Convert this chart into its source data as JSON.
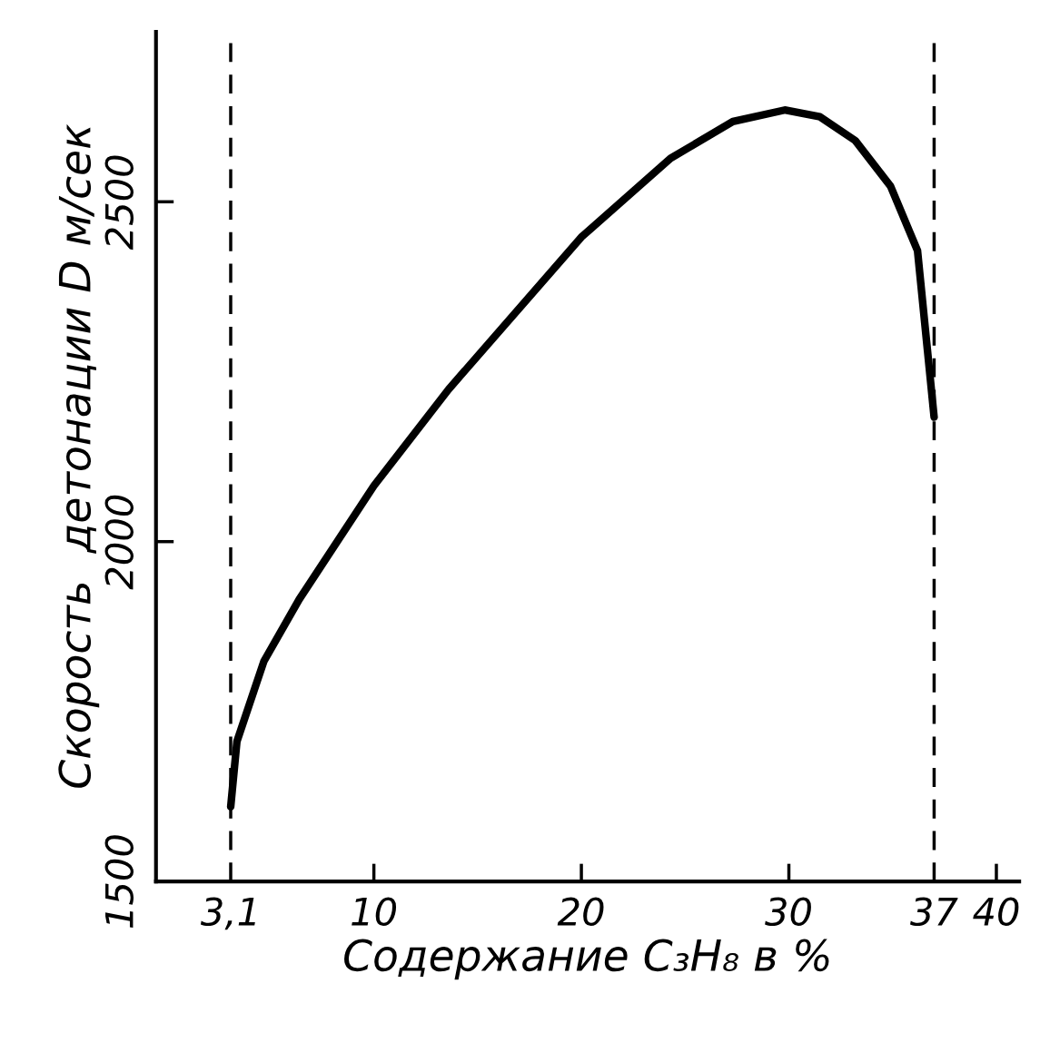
{
  "chart_data": {
    "type": "line",
    "xlabel": "Содержание C₃H₈ в %",
    "ylabel": "Скорость  детонации D м/сек",
    "x": [
      3.1,
      3.4,
      4.7,
      6.4,
      10,
      13.6,
      20,
      24.3,
      27.3,
      29.8,
      31.5,
      33.2,
      34.9,
      36.2,
      37
    ],
    "series": [
      {
        "color": "#000000",
        "values": [
          1610,
          1706,
          1824,
          1915,
          2082,
          2224,
          2448,
          2564,
          2618,
          2635,
          2625,
          2590,
          2523,
          2428,
          2183
        ]
      }
    ],
    "xlim": [
      -0.5,
      41.1
    ],
    "ylim": [
      1500,
      2750
    ],
    "xticks": [
      {
        "value": 3.1,
        "label": "3,1"
      },
      10,
      20,
      30,
      37,
      40
    ],
    "yticks": [
      1500,
      2000,
      2500
    ],
    "ref_lines": [
      {
        "axis": "x",
        "value": 3.1,
        "color": "#000000",
        "line_style": "dashed"
      },
      {
        "axis": "x",
        "value": 37,
        "color": "#000000",
        "line_style": "dashed"
      }
    ],
    "grid": false,
    "legend": false,
    "marker": "none",
    "line_style": "solid"
  }
}
